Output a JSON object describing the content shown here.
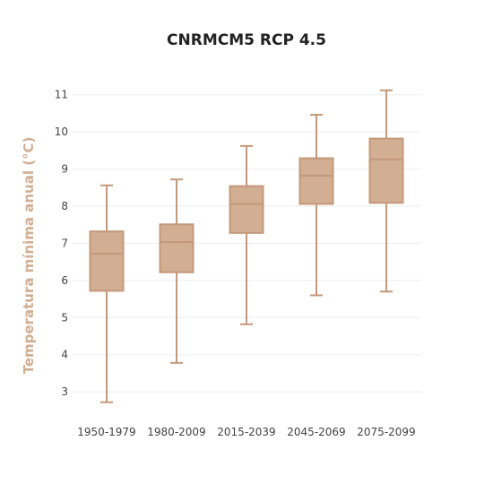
{
  "chart_data": {
    "type": "box",
    "title": "CNRMCM5 RCP 4.5",
    "xlabel": "",
    "ylabel": "Temperatura mínima anual (°C)",
    "ylim": [
      2.4,
      11.5
    ],
    "yticks": [
      3,
      4,
      5,
      6,
      7,
      8,
      9,
      10,
      11
    ],
    "grid": true,
    "categories": [
      "1950-1979",
      "1980-2009",
      "2015-2039",
      "2045-2069",
      "2075-2099"
    ],
    "boxes": [
      {
        "min": 2.72,
        "q1": 5.72,
        "median": 6.72,
        "q3": 7.32,
        "max": 8.56
      },
      {
        "min": 3.78,
        "q1": 6.22,
        "median": 7.03,
        "q3": 7.51,
        "max": 8.72
      },
      {
        "min": 4.82,
        "q1": 7.28,
        "median": 8.06,
        "q3": 8.54,
        "max": 9.62
      },
      {
        "min": 5.6,
        "q1": 8.06,
        "median": 8.82,
        "q3": 9.29,
        "max": 10.46
      },
      {
        "min": 5.7,
        "q1": 8.09,
        "median": 9.26,
        "q3": 9.82,
        "max": 11.12
      }
    ],
    "colors": {
      "box_fill": "#d2ae92",
      "box_stroke": "#c4987a",
      "axis_label": "#d2ae92"
    }
  }
}
